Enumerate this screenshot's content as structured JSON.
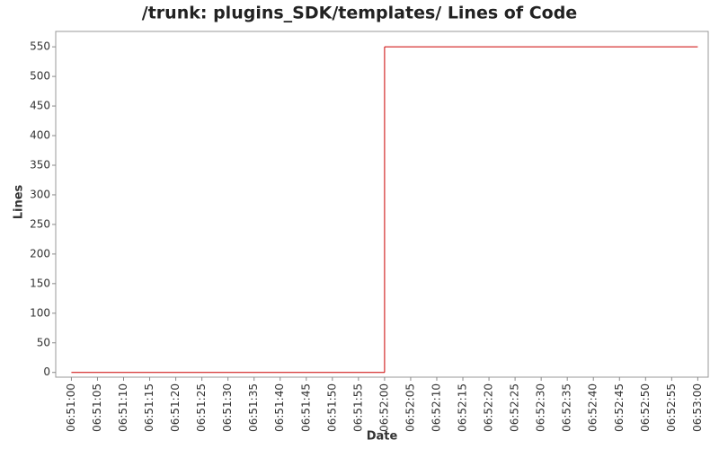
{
  "chart_data": {
    "type": "line",
    "title": "/trunk: plugins_SDK/templates/ Lines of Code",
    "x_label": "Date",
    "y_label": "Lines",
    "x": [
      "06:51:00",
      "06:52:00",
      "06:53:00"
    ],
    "series": [
      {
        "name": "Lines",
        "color": "#cc0000",
        "values": [
          0,
          550,
          550
        ]
      }
    ],
    "step": "post",
    "xlim": [
      "06:50:57",
      "06:53:02"
    ],
    "xticks": [
      "06:51:00",
      "06:51:05",
      "06:51:10",
      "06:51:15",
      "06:51:20",
      "06:51:25",
      "06:51:30",
      "06:51:35",
      "06:51:40",
      "06:51:45",
      "06:51:50",
      "06:51:55",
      "06:52:00",
      "06:52:05",
      "06:52:10",
      "06:52:15",
      "06:52:20",
      "06:52:25",
      "06:52:30",
      "06:52:35",
      "06:52:40",
      "06:52:45",
      "06:52:50",
      "06:52:55",
      "06:53:00"
    ],
    "ylim": [
      -8,
      576
    ],
    "yticks": [
      0,
      50,
      100,
      150,
      200,
      250,
      300,
      350,
      400,
      450,
      500,
      550
    ],
    "grid": false
  }
}
